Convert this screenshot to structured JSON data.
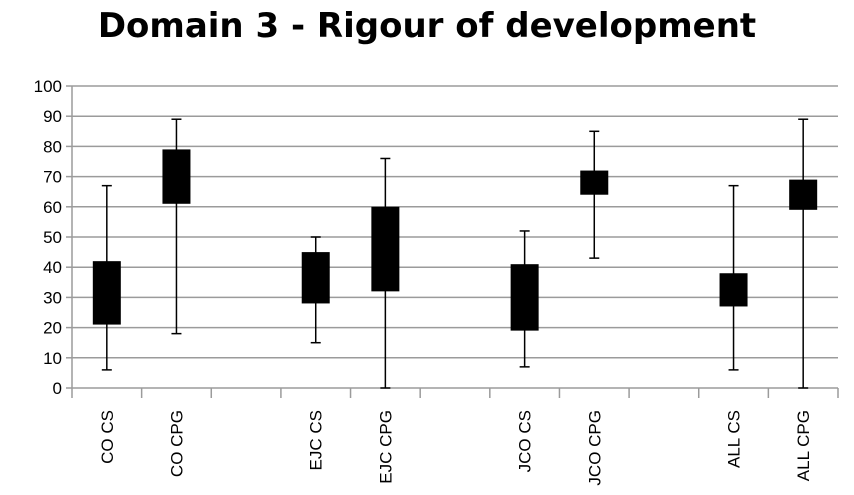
{
  "chart_data": {
    "type": "box",
    "title": "Domain 3 - Rigour of development",
    "xlabel": "",
    "ylabel": "",
    "ylim": [
      0,
      100
    ],
    "yticks": [
      0,
      10,
      20,
      30,
      40,
      50,
      60,
      70,
      80,
      90,
      100
    ],
    "grid": true,
    "legend": "none",
    "box_color": "#000000",
    "grid_color": "#9b9b9b",
    "categories": [
      "CO CS",
      "CO CPG",
      "",
      "EJC CS",
      "EJC CPG",
      "",
      "JCO CS",
      "JCO CPG",
      "",
      "ALL CS",
      "ALL CPG"
    ],
    "series": [
      {
        "category": "CO CS",
        "min": 6,
        "q1": 21,
        "q3": 42,
        "max": 67
      },
      {
        "category": "CO CPG",
        "min": 18,
        "q1": 61,
        "q3": 79,
        "max": 89
      },
      {
        "category": "EJC CS",
        "min": 15,
        "q1": 28,
        "q3": 45,
        "max": 50
      },
      {
        "category": "EJC CPG",
        "min": 0,
        "q1": 32,
        "q3": 60,
        "max": 76
      },
      {
        "category": "JCO CS",
        "min": 7,
        "q1": 19,
        "q3": 41,
        "max": 52
      },
      {
        "category": "JCO CPG",
        "min": 43,
        "q1": 64,
        "q3": 72,
        "max": 85
      },
      {
        "category": "ALL CS",
        "min": 6,
        "q1": 27,
        "q3": 38,
        "max": 67
      },
      {
        "category": "ALL CPG",
        "min": 0,
        "q1": 59,
        "q3": 69,
        "max": 89
      }
    ]
  }
}
